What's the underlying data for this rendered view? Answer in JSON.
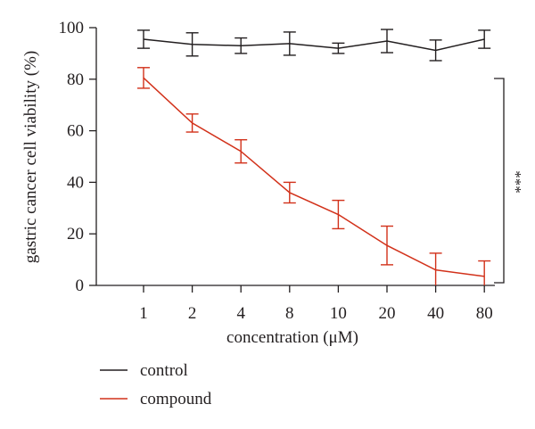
{
  "chart_data": {
    "type": "line",
    "categories": [
      "1",
      "2",
      "4",
      "8",
      "10",
      "20",
      "40",
      "80"
    ],
    "xlabel": "concentration (μM)",
    "ylabel": "gastric cancer cell viability (%)",
    "ylim": [
      0,
      100
    ],
    "yticks": [
      "0",
      "20",
      "40",
      "60",
      "80",
      "100"
    ],
    "grid": false,
    "legend_position": "bottom-left",
    "series": [
      {
        "name": "control",
        "color": "#231f20",
        "values": [
          95.5,
          93.5,
          93.0,
          93.8,
          92.0,
          94.8,
          91.2,
          95.5
        ],
        "errors": [
          3.5,
          4.5,
          3.0,
          4.5,
          2.0,
          4.5,
          4.0,
          3.5
        ]
      },
      {
        "name": "compound",
        "color": "#d2311a",
        "values": [
          80.5,
          63.0,
          52.0,
          36.0,
          27.5,
          15.5,
          6.0,
          3.5
        ],
        "errors": [
          4.0,
          3.5,
          4.5,
          4.0,
          5.5,
          7.5,
          6.5,
          6.0
        ]
      }
    ],
    "annotation": "***"
  }
}
